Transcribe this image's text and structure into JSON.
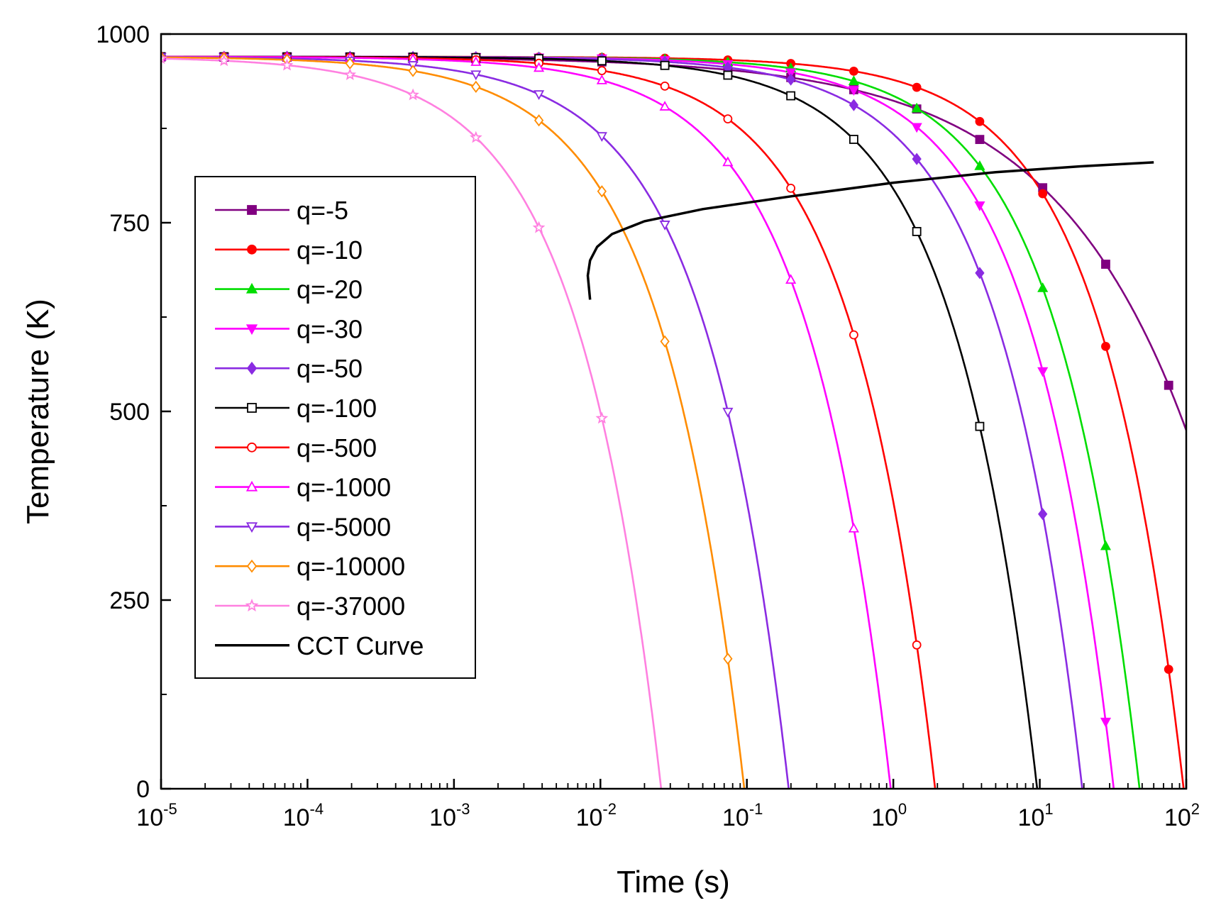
{
  "chart_data": {
    "type": "line",
    "title": "",
    "xlabel": "Time (s)",
    "ylabel": "Temperature (K)",
    "x_scale": "log",
    "xlim": [
      1e-05,
      100
    ],
    "ylim": [
      0,
      1000
    ],
    "x_ticks": [
      {
        "base": "10",
        "exp": "-5"
      },
      {
        "base": "10",
        "exp": "-4"
      },
      {
        "base": "10",
        "exp": "-3"
      },
      {
        "base": "10",
        "exp": "-2"
      },
      {
        "base": "10",
        "exp": "-1"
      },
      {
        "base": "10",
        "exp": "0"
      },
      {
        "base": "10",
        "exp": "1"
      },
      {
        "base": "10",
        "exp": "2"
      }
    ],
    "y_ticks": [
      "0",
      "250",
      "500",
      "750",
      "1000"
    ],
    "grid": false,
    "legend_position": "center-left",
    "series": [
      {
        "name": "q=-5",
        "color": "#800080",
        "marker": "square-filled",
        "end_time": 100,
        "end_temp": 475
      },
      {
        "name": "q=-10",
        "color": "#ff0000",
        "marker": "circle-filled",
        "end_time": 96,
        "end_temp": 0
      },
      {
        "name": "q=-20",
        "color": "#00dd00",
        "marker": "triangle-up-filled",
        "end_time": 48,
        "end_temp": 0
      },
      {
        "name": "q=-30",
        "color": "#ff00ff",
        "marker": "triangle-down-filled",
        "end_time": 32,
        "end_temp": 0
      },
      {
        "name": "q=-50",
        "color": "#8a2be2",
        "marker": "diamond-filled",
        "end_time": 19.5,
        "end_temp": 0
      },
      {
        "name": "q=-100",
        "color": "#000000",
        "marker": "square-open",
        "end_time": 9.6,
        "end_temp": 0
      },
      {
        "name": "q=-500",
        "color": "#ff0000",
        "marker": "circle-open",
        "end_time": 1.93,
        "end_temp": 0
      },
      {
        "name": "q=-1000",
        "color": "#ff00ff",
        "marker": "triangle-up-open",
        "end_time": 0.96,
        "end_temp": 0
      },
      {
        "name": "q=-5000",
        "color": "#8a2be2",
        "marker": "triangle-down-open",
        "end_time": 0.193,
        "end_temp": 0
      },
      {
        "name": "q=-10000",
        "color": "#ff8c00",
        "marker": "diamond-open",
        "end_time": 0.096,
        "end_temp": 0
      },
      {
        "name": "q=-37000",
        "color": "#ff80e0",
        "marker": "star-open",
        "end_time": 0.026,
        "end_temp": 0
      },
      {
        "name": "CCT Curve",
        "color": "#000000",
        "marker": "none",
        "points": [
          [
            0.0085,
            648
          ],
          [
            0.0082,
            680
          ],
          [
            0.0085,
            700
          ],
          [
            0.0095,
            718
          ],
          [
            0.012,
            735
          ],
          [
            0.02,
            752
          ],
          [
            0.05,
            768
          ],
          [
            0.2,
            785
          ],
          [
            1,
            803
          ],
          [
            5,
            817
          ],
          [
            20,
            825
          ],
          [
            60,
            830
          ]
        ]
      }
    ]
  }
}
